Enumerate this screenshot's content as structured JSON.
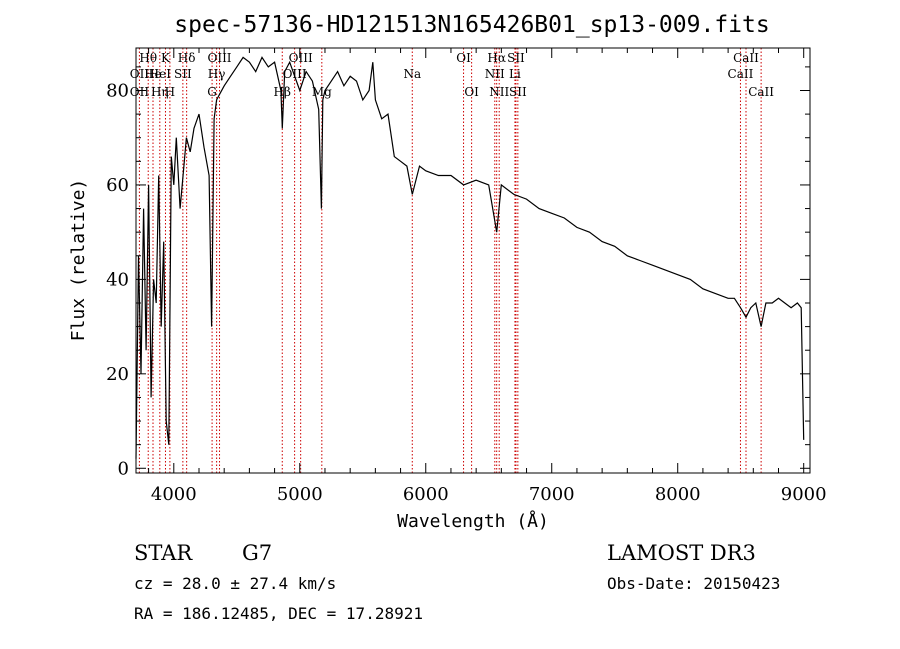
{
  "chart_data": {
    "type": "line",
    "title": "spec-57136-HD121513N165426B01_sp13-009.fits",
    "xlabel": "Wavelength (Å)",
    "ylabel": "Flux (relative)",
    "xlim": [
      3700,
      9050
    ],
    "ylim": [
      -1,
      89
    ],
    "xticks": [
      4000,
      5000,
      6000,
      7000,
      8000,
      9000
    ],
    "yticks": [
      0,
      20,
      40,
      60,
      80
    ],
    "series": [
      {
        "name": "flux",
        "x": [
          3700,
          3720,
          3740,
          3760,
          3780,
          3800,
          3820,
          3840,
          3860,
          3880,
          3900,
          3920,
          3940,
          3960,
          3980,
          4000,
          4020,
          4050,
          4080,
          4100,
          4130,
          4160,
          4200,
          4240,
          4280,
          4300,
          4320,
          4340,
          4360,
          4400,
          4450,
          4500,
          4550,
          4600,
          4650,
          4700,
          4750,
          4800,
          4850,
          4861,
          4880,
          4920,
          4960,
          5000,
          5050,
          5100,
          5150,
          5172,
          5183,
          5200,
          5250,
          5300,
          5350,
          5400,
          5450,
          5500,
          5550,
          5580,
          5600,
          5650,
          5700,
          5750,
          5800,
          5850,
          5893,
          5950,
          6000,
          6100,
          6200,
          6300,
          6400,
          6500,
          6563,
          6600,
          6700,
          6800,
          6900,
          7000,
          7100,
          7200,
          7300,
          7400,
          7500,
          7600,
          7700,
          7800,
          7900,
          8000,
          8100,
          8200,
          8300,
          8400,
          8450,
          8498,
          8542,
          8580,
          8620,
          8662,
          8700,
          8750,
          8800,
          8850,
          8900,
          8950,
          8980,
          9000
        ],
        "y": [
          2,
          45,
          20,
          55,
          25,
          60,
          15,
          40,
          35,
          62,
          30,
          48,
          10,
          5,
          66,
          60,
          70,
          55,
          64,
          70,
          67,
          72,
          75,
          68,
          62,
          30,
          74,
          78,
          79,
          81,
          83,
          85,
          87,
          86,
          84,
          87,
          85,
          86,
          80,
          72,
          84,
          86,
          83,
          80,
          84,
          82,
          76,
          55,
          78,
          80,
          82,
          84,
          81,
          83,
          82,
          78,
          80,
          86,
          78,
          74,
          75,
          66,
          65,
          64,
          58,
          64,
          63,
          62,
          62,
          60,
          61,
          60,
          50,
          60,
          58,
          57,
          55,
          54,
          53,
          51,
          50,
          48,
          47,
          45,
          44,
          43,
          42,
          41,
          40,
          38,
          37,
          36,
          36,
          34,
          32,
          34,
          35,
          30,
          35,
          35,
          36,
          35,
          34,
          35,
          34,
          6
        ]
      }
    ],
    "line_markers": [
      {
        "label": "Hθ",
        "x": 3797,
        "row": 1
      },
      {
        "label": "OII",
        "x": 3727,
        "row": 2
      },
      {
        "label": "OII",
        "x": 3727,
        "row": 3
      },
      {
        "label": "He",
        "x": 3835,
        "row": 2
      },
      {
        "label": "Hη",
        "x": 3889,
        "row": 3
      },
      {
        "label": "K",
        "x": 3934,
        "row": 1
      },
      {
        "label": "HeI",
        "x": 3889,
        "row": 2
      },
      {
        "label": "H",
        "x": 3969,
        "row": 3
      },
      {
        "label": "SII",
        "x": 4072,
        "row": 2
      },
      {
        "label": "Hδ",
        "x": 4102,
        "row": 1
      },
      {
        "label": "OIII",
        "x": 4363,
        "row": 1
      },
      {
        "label": "Hγ",
        "x": 4340,
        "row": 2
      },
      {
        "label": "G",
        "x": 4304,
        "row": 3
      },
      {
        "label": "OIII",
        "x": 5007,
        "row": 1
      },
      {
        "label": "OIII",
        "x": 4959,
        "row": 2
      },
      {
        "label": "Hβ",
        "x": 4861,
        "row": 3
      },
      {
        "label": "Mg",
        "x": 5175,
        "row": 3
      },
      {
        "label": "Na",
        "x": 5893,
        "row": 2
      },
      {
        "label": "OI",
        "x": 6300,
        "row": 1
      },
      {
        "label": "OI",
        "x": 6364,
        "row": 3
      },
      {
        "label": "Hα",
        "x": 6563,
        "row": 1
      },
      {
        "label": "SII",
        "x": 6716,
        "row": 1
      },
      {
        "label": "NII",
        "x": 6548,
        "row": 2
      },
      {
        "label": "Li",
        "x": 6708,
        "row": 2
      },
      {
        "label": "NII",
        "x": 6583,
        "row": 3
      },
      {
        "label": "SII",
        "x": 6731,
        "row": 3
      },
      {
        "label": "CaII",
        "x": 8542,
        "row": 1
      },
      {
        "label": "CaII",
        "x": 8498,
        "row": 2
      },
      {
        "label": "CaII",
        "x": 8662,
        "row": 3
      }
    ],
    "marker_wavelengths": [
      3727,
      3797,
      3835,
      3889,
      3934,
      3969,
      4072,
      4102,
      4304,
      4340,
      4363,
      4861,
      4959,
      5007,
      5175,
      5893,
      6300,
      6364,
      6548,
      6563,
      6583,
      6708,
      6716,
      6731,
      8498,
      8542,
      8662
    ]
  },
  "info": {
    "class": "STAR",
    "subclass": "G7",
    "survey": "LAMOST DR3",
    "cz": "cz = 28.0 ± 27.4 km/s",
    "obs_date": "Obs-Date: 20150423",
    "radec": "RA = 186.12485, DEC =  17.28921"
  },
  "colors": {
    "marker": "#cc0000",
    "ink": "#000000"
  }
}
